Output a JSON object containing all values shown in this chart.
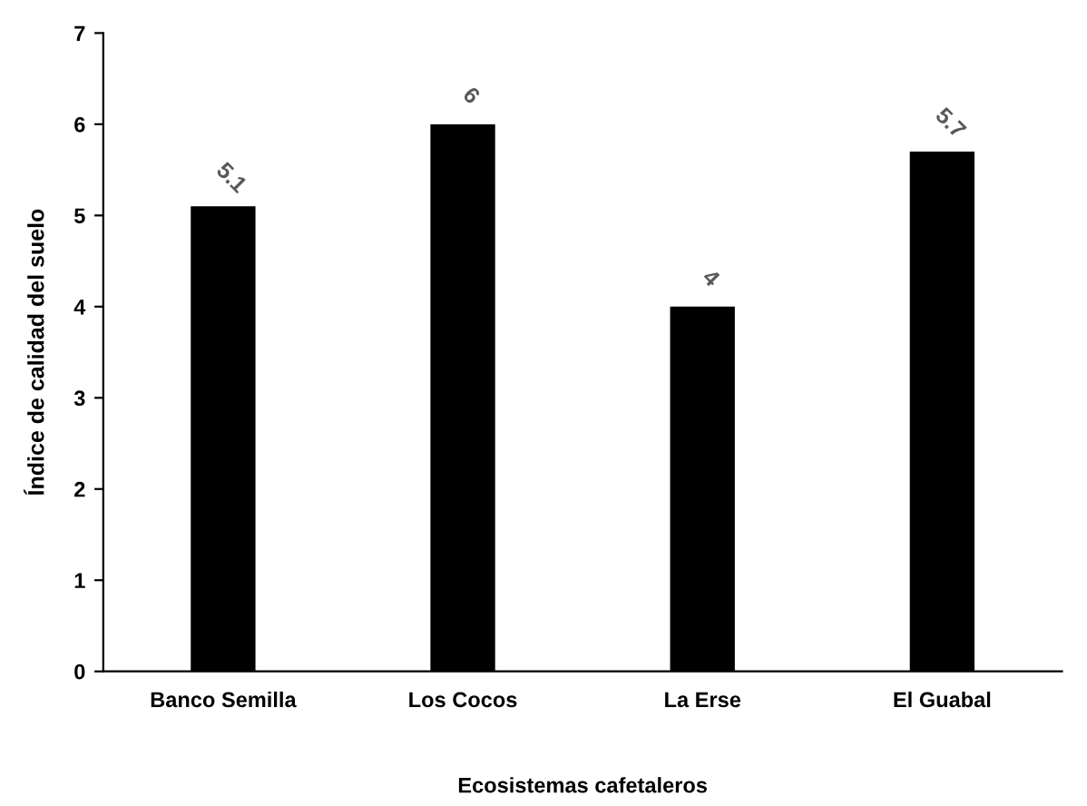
{
  "chart_data": {
    "type": "bar",
    "xlabel": "Ecosistemas cafetaleros",
    "ylabel": "Índice de calidad del suelo",
    "categories": [
      "Banco Semilla",
      "Los Cocos",
      "La Erse",
      "El Guabal"
    ],
    "values": [
      5.1,
      6,
      4,
      5.7
    ],
    "color": "#000000",
    "ylim": [
      0,
      7
    ],
    "yticks": [
      0,
      1,
      2,
      3,
      4,
      5,
      6,
      7
    ],
    "grid": false,
    "data_labels": true
  }
}
